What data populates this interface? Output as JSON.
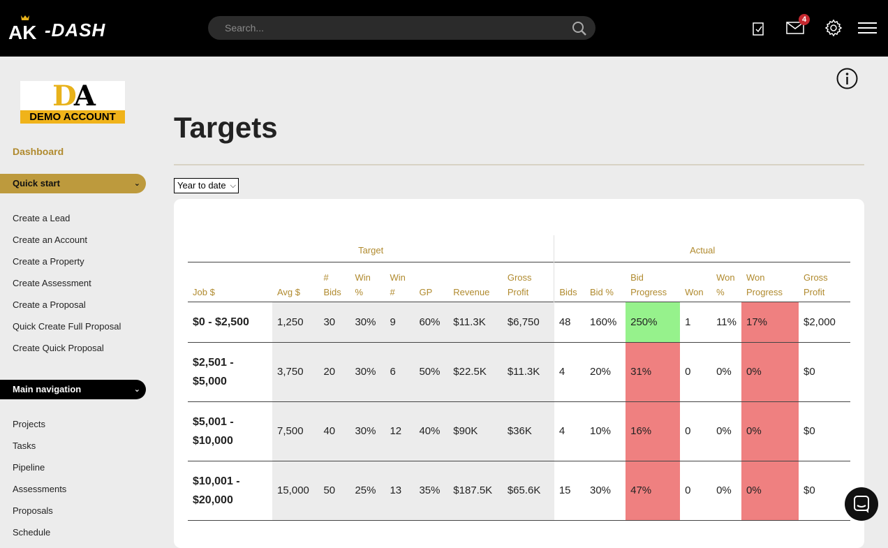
{
  "header": {
    "logo_text": "AK DASH",
    "search_placeholder": "Search...",
    "mail_badge": "4",
    "icons": [
      "tasks-icon",
      "mail-icon",
      "gear-icon",
      "menu-icon",
      "search-icon"
    ]
  },
  "sidebar": {
    "company_logo_text": "DEMO ACCOUNT",
    "dashboard_label": "Dashboard",
    "quick_start_label": "Quick start",
    "quick_links": [
      "Create a Lead",
      "Create an Account",
      "Create a Property",
      "Create Assessment",
      "Create a Proposal",
      "Quick Create Full Proposal",
      "Create Quick Proposal"
    ],
    "main_navigation_label": "Main navigation",
    "main_links": [
      "Projects",
      "Tasks",
      "Pipeline",
      "Assessments",
      "Proposals",
      "Schedule"
    ]
  },
  "main": {
    "title": "Targets",
    "period_select": "Year to date",
    "groups": {
      "target": "Target",
      "actual": "Actual"
    },
    "columns": {
      "job": "Job $",
      "avg": "Avg $",
      "bids": "# Bids",
      "win_pct": "Win %",
      "win_num": "Win #",
      "gp": "GP",
      "revenue": "Revenue",
      "gross_profit": "Gross Profit",
      "a_bids": "Bids",
      "bid_pct": "Bid %",
      "bid_progress": "Bid Progress",
      "won": "Won",
      "won_pct": "Won %",
      "won_progress": "Won Progress",
      "a_gross_profit": "Gross Profit"
    },
    "rows": [
      {
        "job": "$0 - $2,500",
        "avg": "1,250",
        "bids": "30",
        "win_pct": "30%",
        "win_num": "9",
        "gp": "60%",
        "revenue": "$11.3K",
        "gross_profit": "$6,750",
        "a_bids": "48",
        "bid_pct": "160%",
        "bid_progress": "250%",
        "won": "1",
        "won_pct": "11%",
        "won_progress": "17%",
        "a_gross_profit": "$2,000"
      },
      {
        "job": "$2,501 - $5,000",
        "avg": "3,750",
        "bids": "20",
        "win_pct": "30%",
        "win_num": "6",
        "gp": "50%",
        "revenue": "$22.5K",
        "gross_profit": "$11.3K",
        "a_bids": "4",
        "bid_pct": "20%",
        "bid_progress": "31%",
        "won": "0",
        "won_pct": "0%",
        "won_progress": "0%",
        "a_gross_profit": "$0"
      },
      {
        "job": "$5,001 - $10,000",
        "avg": "7,500",
        "bids": "40",
        "win_pct": "30%",
        "win_num": "12",
        "gp": "40%",
        "revenue": "$90K",
        "gross_profit": "$36K",
        "a_bids": "4",
        "bid_pct": "10%",
        "bid_progress": "16%",
        "won": "0",
        "won_pct": "0%",
        "won_progress": "0%",
        "a_gross_profit": "$0"
      },
      {
        "job": "$10,001 - $20,000",
        "avg": "15,000",
        "bids": "50",
        "win_pct": "25%",
        "win_num": "13",
        "gp": "35%",
        "revenue": "$187.5K",
        "gross_profit": "$65.6K",
        "a_bids": "15",
        "bid_pct": "30%",
        "bid_progress": "47%",
        "won": "0",
        "won_pct": "0%",
        "won_progress": "0%",
        "a_gross_profit": "$0"
      }
    ],
    "colors": {
      "accent": "#b08a2e",
      "progress_good": "#96f28c",
      "progress_bad": "#ef8080"
    }
  }
}
